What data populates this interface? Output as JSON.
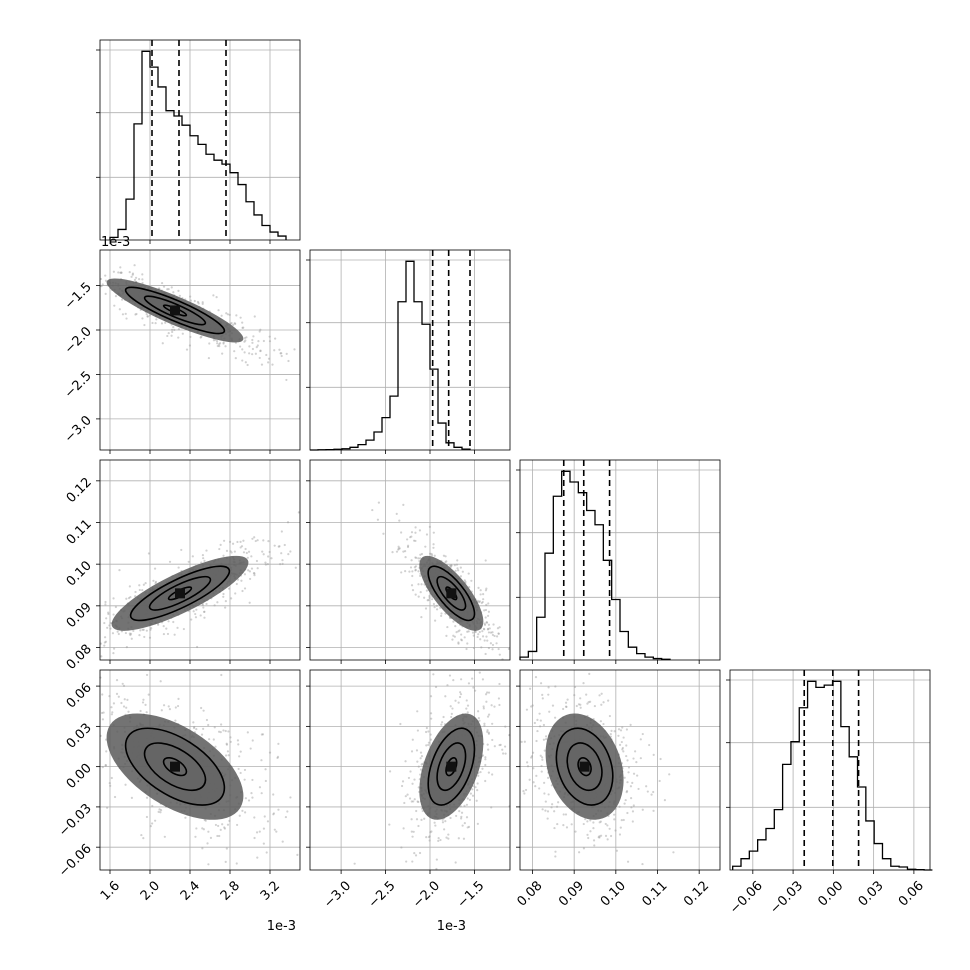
{
  "chart_data": {
    "type": "corner",
    "parameters": [
      {
        "range": [
          1.5,
          3.5
        ],
        "offset_label": "1e-3",
        "ticks": [
          1.6,
          2.0,
          2.4,
          2.8,
          3.2
        ],
        "tick_labels": [
          "1.6",
          "2.0",
          "2.4",
          "2.8",
          "3.2"
        ],
        "quantiles": [
          2.02,
          2.29,
          2.76
        ],
        "hist_edges_start": 1.6,
        "hist_bin_width": 0.08,
        "hist_counts": [
          40,
          160,
          620,
          1760,
          2860,
          2620,
          2320,
          1960,
          1880,
          1740,
          1580,
          1450,
          1300,
          1210,
          1150,
          1020,
          840,
          580,
          380,
          220,
          120,
          60
        ]
      },
      {
        "range": [
          -3.35,
          -1.1
        ],
        "offset_label": "1e-3",
        "ticks": [
          -3.0,
          -2.5,
          -2.0,
          -1.5
        ],
        "tick_labels": [
          "−3.0",
          "−2.5",
          "−2.0",
          "−1.5"
        ],
        "quantiles": [
          -1.97,
          -1.79,
          -1.55
        ],
        "hist_edges_start": -3.35,
        "hist_bin_width": 0.09,
        "hist_counts": [
          0,
          2,
          4,
          8,
          14,
          30,
          60,
          110,
          200,
          360,
          600,
          1650,
          2100,
          1650,
          1400,
          900,
          300,
          80,
          30,
          10
        ]
      },
      {
        "range": [
          0.077,
          0.125
        ],
        "offset_label": "",
        "ticks": [
          0.08,
          0.09,
          0.1,
          0.11,
          0.12
        ],
        "tick_labels": [
          "0.08",
          "0.09",
          "0.10",
          "0.11",
          "0.12"
        ],
        "quantiles": [
          0.0875,
          0.0923,
          0.0985
        ],
        "hist_edges_start": 0.077,
        "hist_bin_width": 0.002,
        "hist_counts": [
          40,
          120,
          600,
          1500,
          2300,
          2650,
          2500,
          2350,
          2100,
          1900,
          1400,
          850,
          400,
          180,
          90,
          40,
          20,
          10
        ]
      },
      {
        "range": [
          -0.077,
          0.072
        ],
        "offset_label": "",
        "ticks": [
          -0.06,
          -0.03,
          0.0,
          0.03,
          0.06
        ],
        "tick_labels": [
          "−0.06",
          "−0.03",
          "0.00",
          "0.03",
          "0.06"
        ],
        "quantiles": [
          -0.0217,
          -0.0004,
          0.0188
        ],
        "hist_edges_start": -0.075,
        "hist_bin_width": 0.0062,
        "hist_counts": [
          50,
          150,
          250,
          400,
          550,
          800,
          1400,
          1700,
          2150,
          2500,
          2420,
          2450,
          2500,
          1900,
          1500,
          1100,
          650,
          350,
          150,
          50,
          40,
          10,
          5,
          0
        ]
      }
    ],
    "pair_contours": [
      {
        "i": 1,
        "j": 0,
        "center": [
          2.25,
          -1.78
        ],
        "sigma": [
          0.38,
          0.2
        ],
        "rho": -0.88
      },
      {
        "i": 2,
        "j": 0,
        "center": [
          2.3,
          0.093
        ],
        "sigma": [
          0.38,
          0.005
        ],
        "rho": 0.82
      },
      {
        "i": 2,
        "j": 1,
        "center": [
          -1.76,
          0.093
        ],
        "sigma": [
          0.2,
          0.005
        ],
        "rho": -0.75
      },
      {
        "i": 3,
        "j": 0,
        "center": [
          2.25,
          0.0
        ],
        "sigma": [
          0.38,
          0.022
        ],
        "rho": -0.55
      },
      {
        "i": 3,
        "j": 1,
        "center": [
          -1.76,
          0.0
        ],
        "sigma": [
          0.2,
          0.022
        ],
        "rho": 0.45
      },
      {
        "i": 3,
        "j": 2,
        "center": [
          0.0925,
          0.0
        ],
        "sigma": [
          0.0052,
          0.022
        ],
        "rho": -0.25
      }
    ],
    "contour_levels": [
      0.5,
      1.0,
      1.5,
      2.0
    ],
    "xlabel": "",
    "ylabel": "",
    "grid": true
  }
}
